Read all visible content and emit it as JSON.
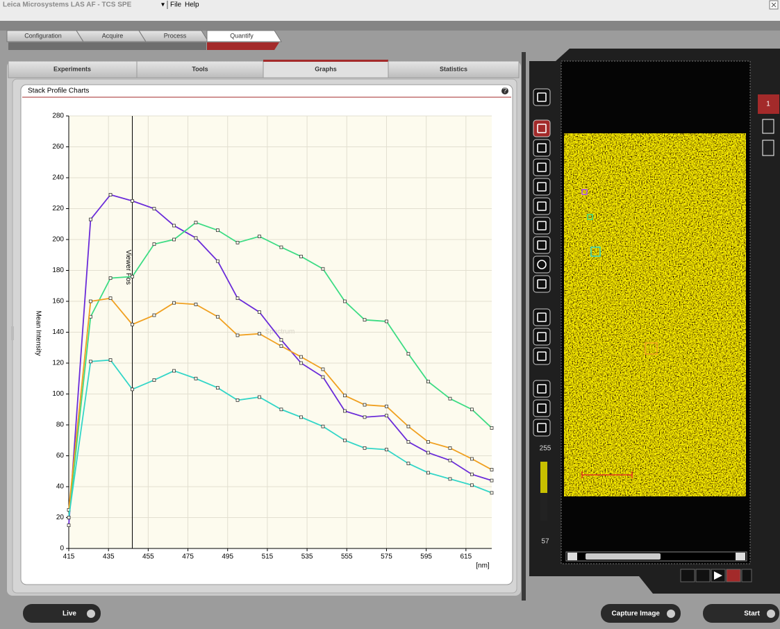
{
  "window": {
    "title": "Leica Microsystems LAS AF - TCS SPE",
    "menu": [
      "File",
      "Help"
    ]
  },
  "workflow_tabs": [
    "Configuration",
    "Acquire",
    "Process",
    "Quantify"
  ],
  "sub_tabs": [
    "Experiments",
    "Tools",
    "Graphs",
    "Statistics"
  ],
  "panel_title": "Stack Profile Charts",
  "chart_data": {
    "type": "line",
    "y_label": "Mean Intensity",
    "x_unit": "[nm]",
    "watermark": "Spectrum",
    "marker_label": "Viewer Pos",
    "viewer_position": 447,
    "x": [
      415,
      426,
      436,
      447,
      458,
      468,
      479,
      490,
      500,
      511,
      522,
      532,
      543,
      554,
      564,
      575,
      586,
      596,
      607,
      618,
      628
    ],
    "series": [
      {
        "color": "#6a2bd9",
        "values": [
          15,
          213,
          229,
          225,
          220,
          209,
          201,
          186,
          162,
          153,
          135,
          120,
          111,
          89,
          85,
          86,
          69,
          62,
          57,
          48,
          44
        ]
      },
      {
        "color": "#3ddc84",
        "values": [
          20,
          150,
          175,
          176,
          197,
          200,
          211,
          206,
          198,
          202,
          195,
          189,
          181,
          160,
          148,
          147,
          126,
          108,
          97,
          90,
          78
        ]
      },
      {
        "color": "#f0a020",
        "values": [
          25,
          160,
          162,
          145,
          151,
          159,
          158,
          150,
          138,
          139,
          131,
          124,
          116,
          99,
          93,
          92,
          79,
          69,
          65,
          58,
          51
        ]
      },
      {
        "color": "#33d6c8",
        "values": [
          20,
          121,
          122,
          103,
          109,
          115,
          110,
          104,
          96,
          98,
          90,
          85,
          79,
          70,
          65,
          64,
          55,
          49,
          45,
          41,
          36
        ]
      }
    ],
    "xlim": [
      415,
      628
    ],
    "ylim": [
      0,
      280
    ],
    "xticks": [
      415,
      435,
      455,
      475,
      495,
      515,
      535,
      555,
      575,
      595,
      615
    ],
    "yticks": [
      0,
      20,
      40,
      60,
      80,
      100,
      120,
      140,
      160,
      180,
      200,
      220,
      240,
      260,
      280
    ],
    "grid": true
  },
  "channel_button": "1",
  "color_scale": {
    "max": 255,
    "min": 57
  },
  "buttons": [
    "Live",
    "Capture Image",
    "Start"
  ]
}
